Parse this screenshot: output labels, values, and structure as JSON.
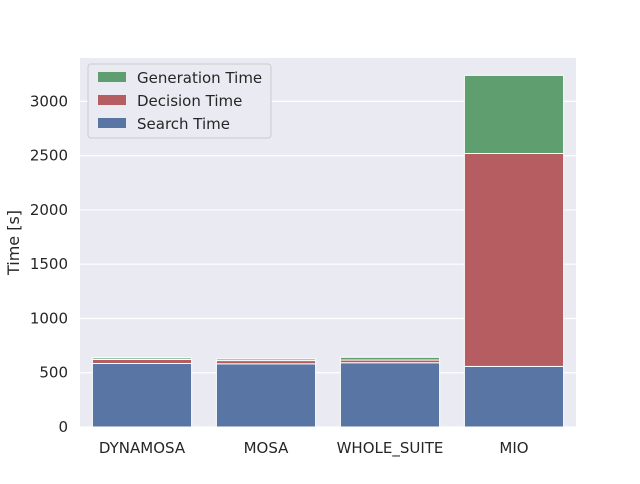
{
  "chart_data": {
    "type": "bar",
    "stacked": true,
    "categories": [
      "DYNAMOSA",
      "MOSA",
      "WHOLE_SUITE",
      "MIO"
    ],
    "series": [
      {
        "name": "Search Time",
        "color": "#5875a4",
        "values": [
          585,
          582,
          592,
          558
        ]
      },
      {
        "name": "Decision Time",
        "color": "#b55d60",
        "values": [
          38,
          30,
          25,
          1962
        ]
      },
      {
        "name": "Generation Time",
        "color": "#5f9e6e",
        "values": [
          15,
          15,
          25,
          720
        ]
      }
    ],
    "title": "",
    "xlabel": "",
    "ylabel": "Time [s]",
    "ylim": [
      0,
      3400
    ],
    "yticks": [
      0,
      500,
      1000,
      1500,
      2000,
      2500,
      3000
    ],
    "grid": true,
    "legend": {
      "placement": "top-left",
      "order": [
        "Generation Time",
        "Decision Time",
        "Search Time"
      ]
    },
    "background": "#eaeaf2"
  }
}
